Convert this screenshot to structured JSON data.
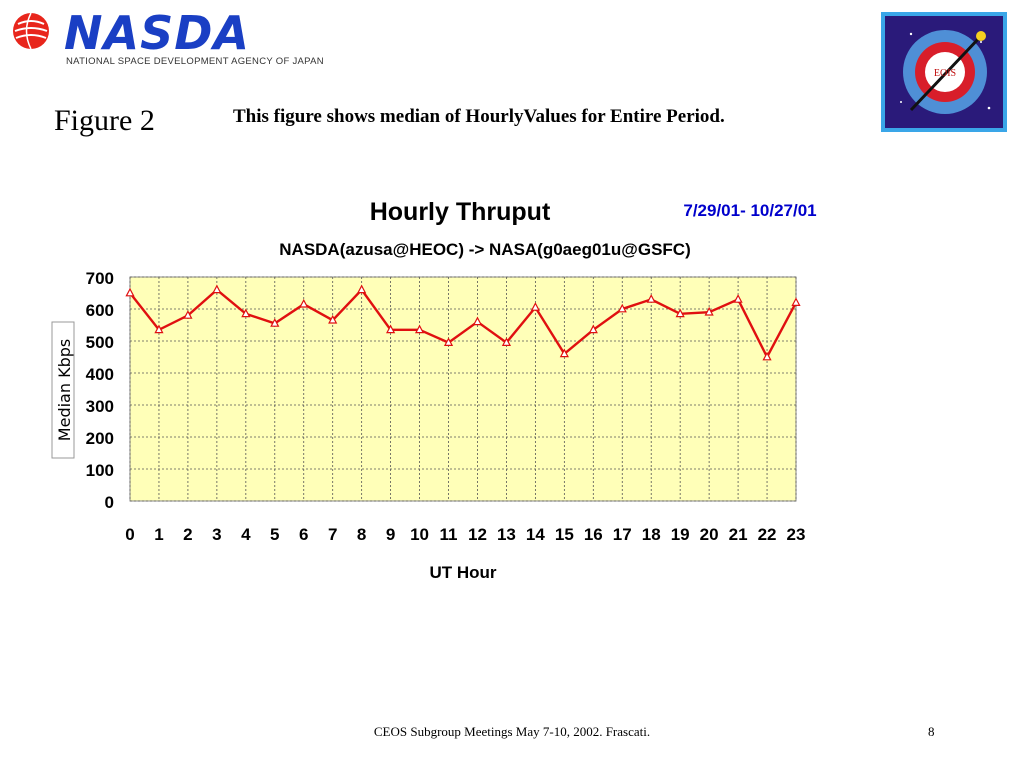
{
  "header": {
    "logo_text": "NASDA",
    "agency_name": "NATIONAL SPACE DEVELOPMENT AGENCY OF JAPAN",
    "badge_text": "EOIS"
  },
  "figure_label": "Figure 2",
  "caption": "This figure shows median of HourlyValues for Entire Period.",
  "chart_data": {
    "type": "line",
    "title": "Hourly Thruput",
    "date_range": "7/29/01- 10/27/01",
    "subtitle": "NASDA(azusa@HEOC) -> NASA(g0aeg01u@GSFC)",
    "xlabel": "UT Hour",
    "ylabel": "Median Kbps",
    "categories": [
      "0",
      "1",
      "2",
      "3",
      "4",
      "5",
      "6",
      "7",
      "8",
      "9",
      "10",
      "11",
      "12",
      "13",
      "14",
      "15",
      "16",
      "17",
      "18",
      "19",
      "20",
      "21",
      "22",
      "23"
    ],
    "series": [
      {
        "values": [
          650,
          535,
          580,
          660,
          585,
          555,
          615,
          565,
          660,
          535,
          535,
          495,
          560,
          495,
          605,
          460,
          535,
          600,
          630,
          585,
          590,
          630,
          450,
          620
        ]
      }
    ],
    "yticks": [
      0,
      100,
      200,
      300,
      400,
      500,
      600,
      700
    ],
    "ylim": [
      0,
      700
    ],
    "grid": true,
    "colors": {
      "line": "#e01010",
      "plot_bg": "#ffffb8",
      "title": "#000000",
      "date": "#0000cc"
    }
  },
  "footer": {
    "text": "CEOS Subgroup Meetings  May 7-10, 2002.  Frascati.",
    "page_number": "8"
  }
}
